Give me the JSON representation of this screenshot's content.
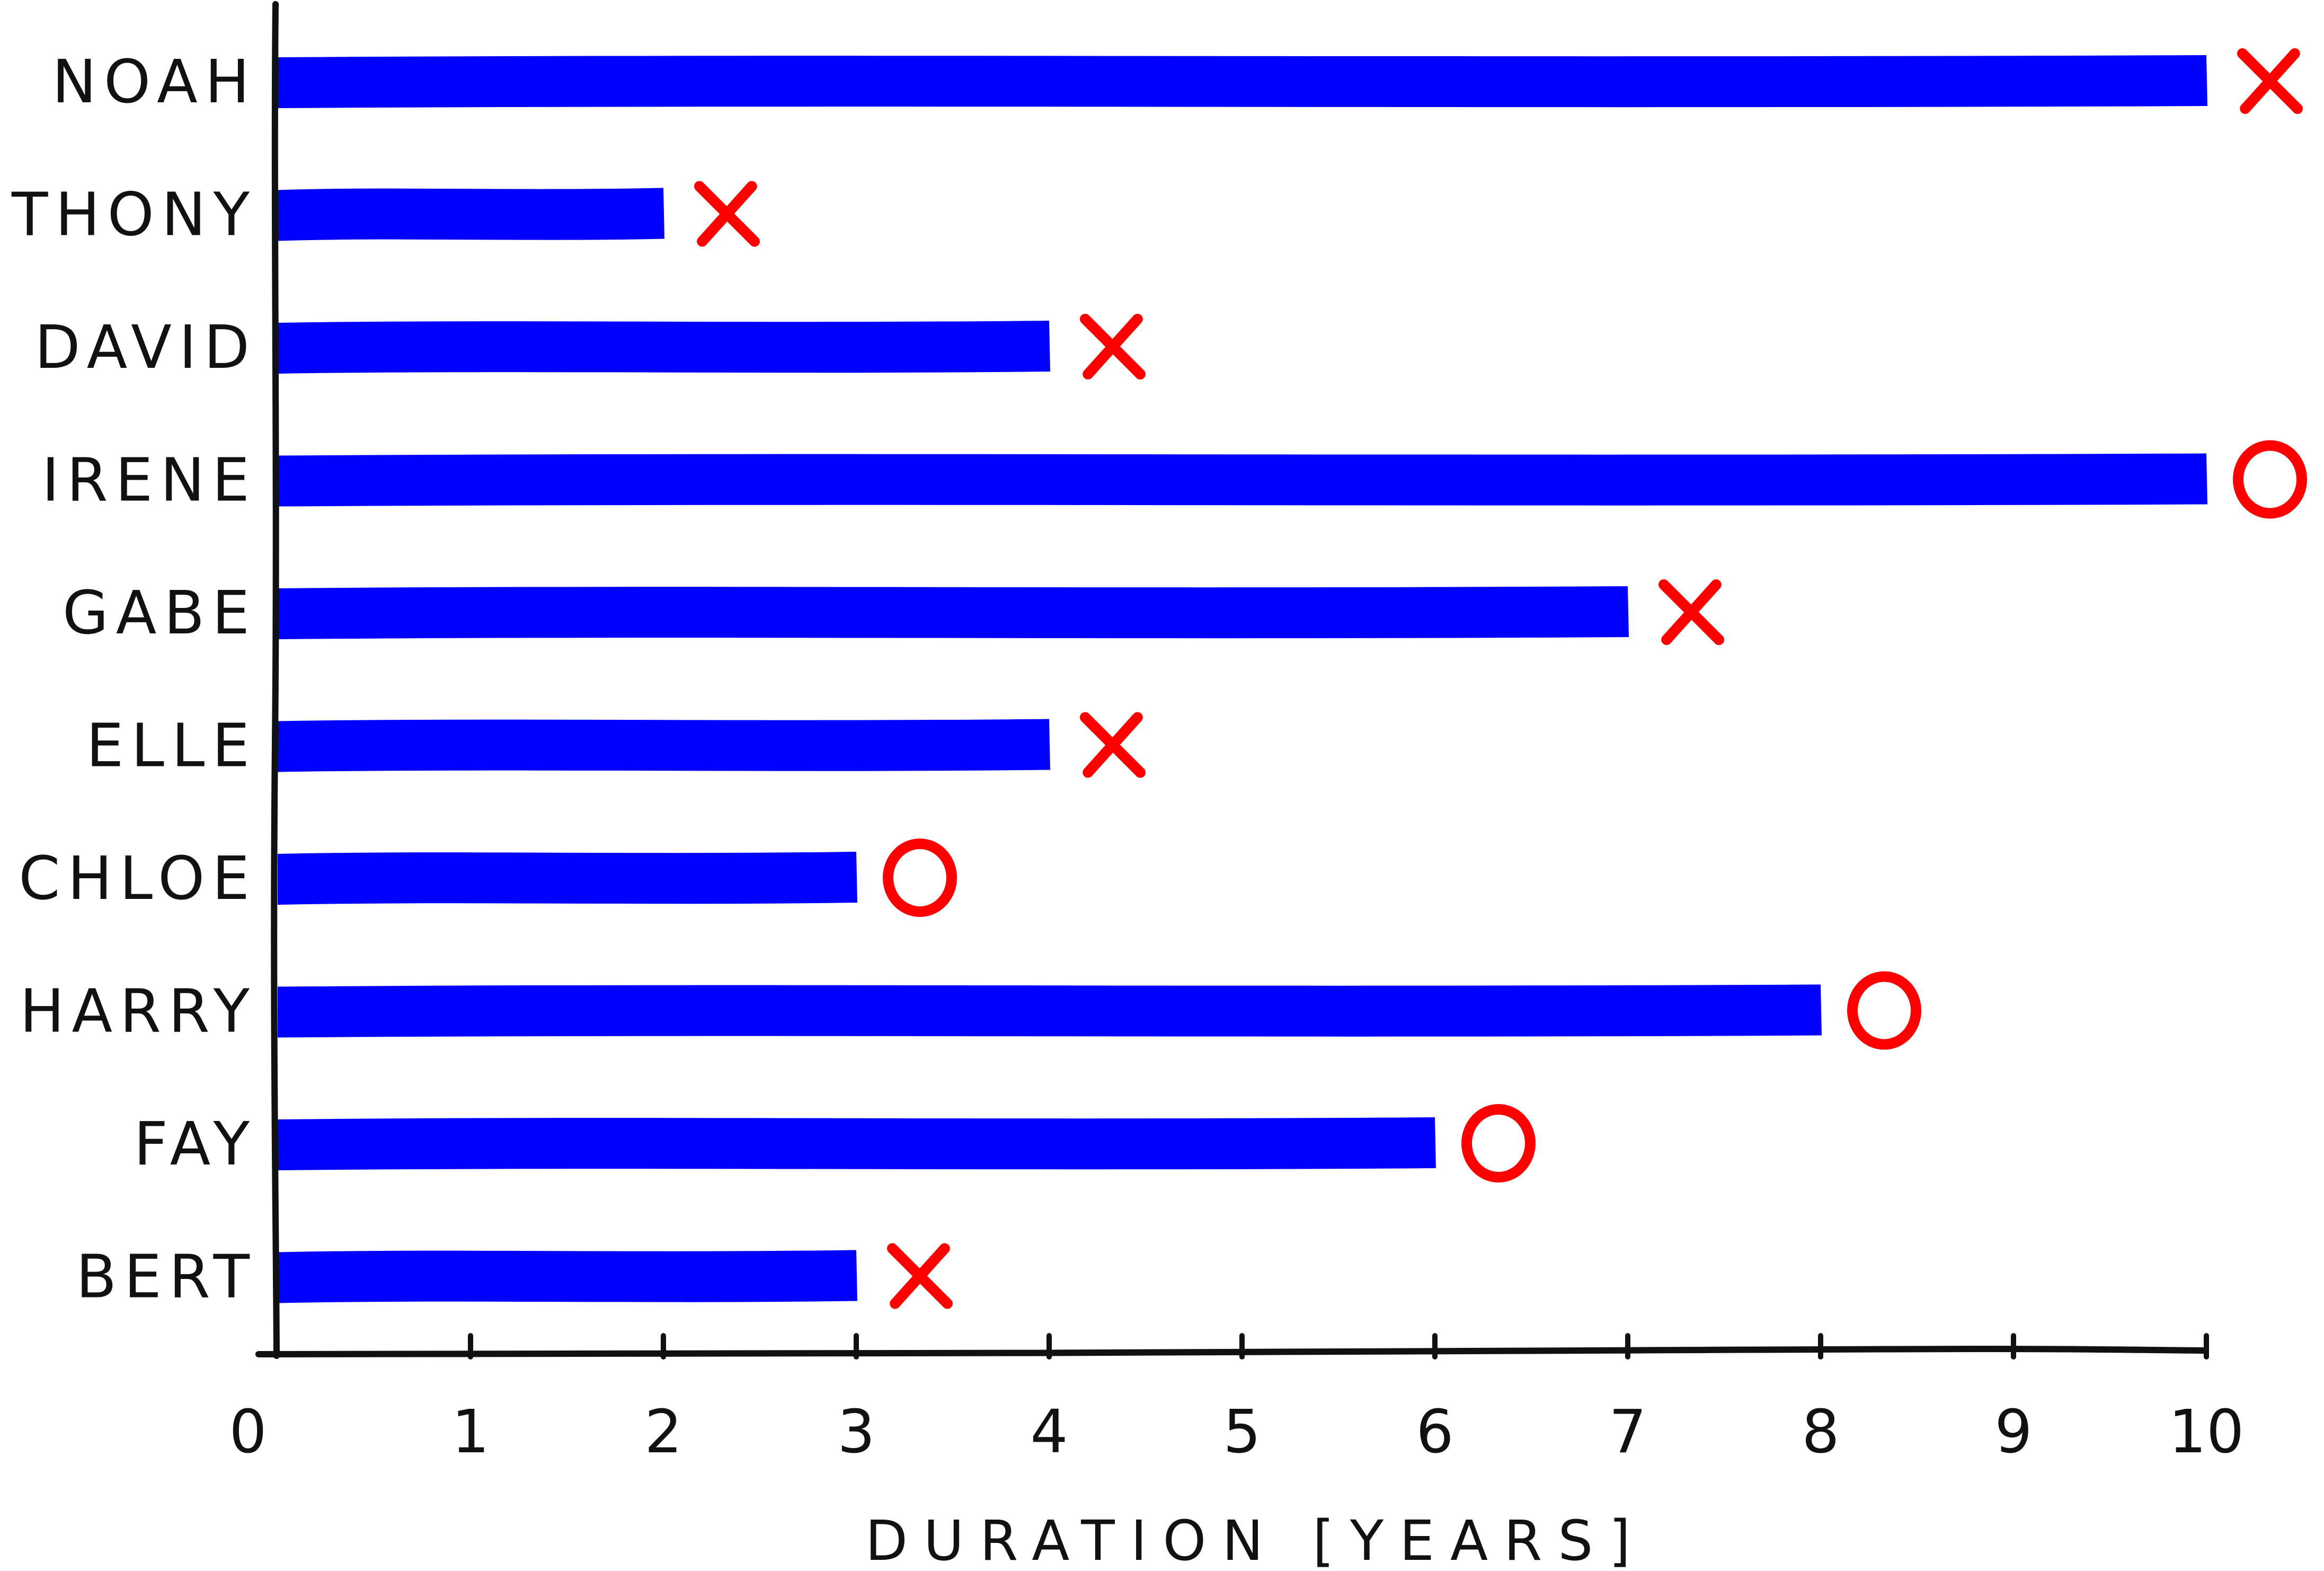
{
  "chart_data": {
    "type": "bar",
    "orientation": "horizontal",
    "categories": [
      "NOAH",
      "ANTHONY",
      "DAVID",
      "IRENE",
      "GABE",
      "ELLE",
      "CHLOE",
      "HARRY",
      "FAY",
      "BERT"
    ],
    "values": [
      10,
      2,
      4,
      10,
      7,
      4,
      3,
      8,
      6,
      3
    ],
    "markers": [
      "X",
      "X",
      "X",
      "O",
      "X",
      "X",
      "O",
      "O",
      "O",
      "X"
    ],
    "xlabel": "DURATION [YEARS]",
    "ylabel": "",
    "xlim": [
      0,
      10
    ],
    "xticks": [
      "0",
      "1",
      "2",
      "3",
      "4",
      "5",
      "6",
      "7",
      "8",
      "9",
      "10"
    ],
    "grid": false,
    "style": "hand-drawn",
    "colors": {
      "bar": "#0000ff",
      "marker": "#ff0000",
      "axis": "#111111"
    }
  }
}
